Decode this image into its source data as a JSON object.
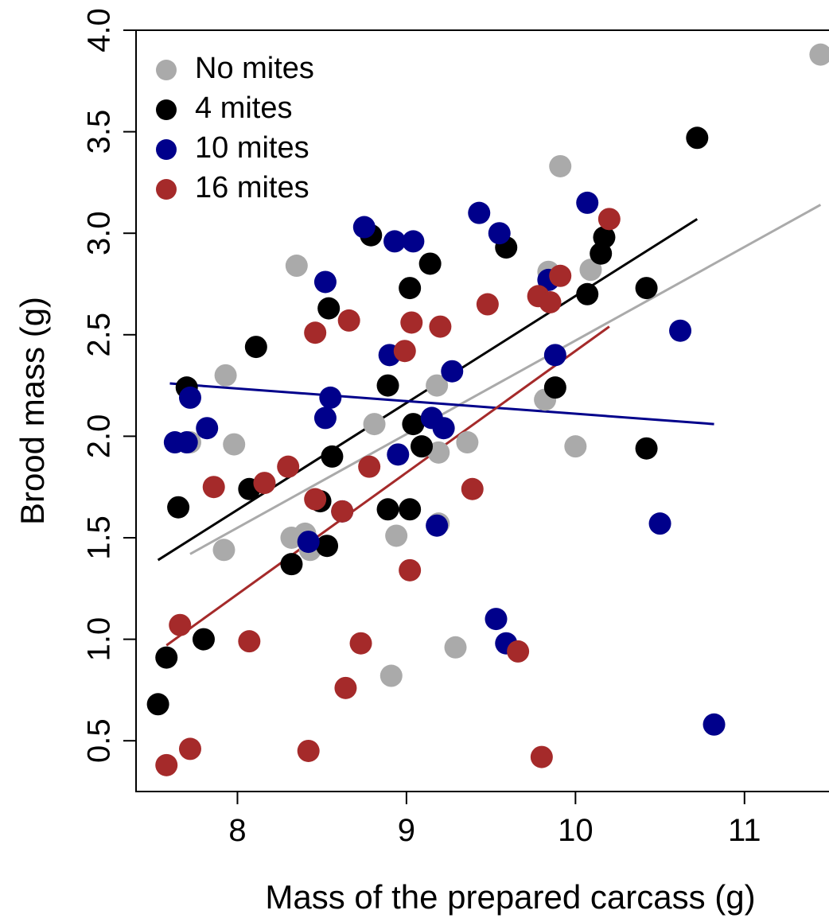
{
  "chart_data": {
    "type": "scatter",
    "title": "",
    "xlabel": "Mass of the prepared carcass (g)",
    "ylabel": "Brood mass (g)",
    "xlim": [
      7.4,
      11.5
    ],
    "ylim": [
      0.25,
      4.0
    ],
    "xticks": [
      8,
      9,
      10,
      11
    ],
    "xtick_labels": [
      "8",
      "9",
      "10",
      "11"
    ],
    "yticks": [
      0.5,
      1.0,
      1.5,
      2.0,
      2.5,
      3.0,
      3.5,
      4.0
    ],
    "ytick_labels": [
      "0.5",
      "1.0",
      "1.5",
      "2.0",
      "2.5",
      "3.0",
      "3.5",
      "4.0"
    ],
    "grid": false,
    "legend_position": "top-left",
    "series": [
      {
        "name": "No mites",
        "color": "#aaaaaa",
        "points": [
          [
            8.35,
            2.84
          ],
          [
            7.93,
            2.3
          ],
          [
            7.72,
            1.97
          ],
          [
            7.98,
            1.96
          ],
          [
            7.92,
            1.44
          ],
          [
            8.32,
            1.5
          ],
          [
            8.4,
            1.52
          ],
          [
            8.43,
            1.44
          ],
          [
            8.81,
            2.06
          ],
          [
            8.94,
            1.51
          ],
          [
            8.91,
            0.82
          ],
          [
            9.18,
            2.25
          ],
          [
            9.19,
            1.92
          ],
          [
            9.19,
            1.57
          ],
          [
            9.36,
            1.97
          ],
          [
            9.29,
            0.96
          ],
          [
            9.91,
            3.33
          ],
          [
            9.84,
            2.81
          ],
          [
            10.09,
            2.82
          ],
          [
            9.82,
            2.18
          ],
          [
            10.0,
            1.95
          ],
          [
            11.45,
            3.88
          ]
        ]
      },
      {
        "name": "4 mites",
        "color": "#000000",
        "points": [
          [
            7.53,
            0.68
          ],
          [
            7.58,
            0.91
          ],
          [
            7.8,
            1.0
          ],
          [
            7.65,
            1.65
          ],
          [
            7.7,
            2.24
          ],
          [
            8.07,
            1.74
          ],
          [
            8.11,
            2.44
          ],
          [
            8.32,
            1.37
          ],
          [
            8.49,
            1.68
          ],
          [
            8.53,
            1.46
          ],
          [
            8.54,
            2.63
          ],
          [
            8.56,
            1.9
          ],
          [
            8.79,
            2.99
          ],
          [
            8.89,
            2.25
          ],
          [
            8.89,
            1.64
          ],
          [
            9.02,
            1.64
          ],
          [
            9.02,
            2.73
          ],
          [
            9.04,
            2.06
          ],
          [
            9.09,
            1.95
          ],
          [
            9.14,
            2.85
          ],
          [
            9.59,
            2.93
          ],
          [
            9.88,
            2.24
          ],
          [
            10.07,
            2.7
          ],
          [
            10.15,
            2.9
          ],
          [
            10.17,
            2.98
          ],
          [
            10.42,
            2.73
          ],
          [
            10.42,
            1.94
          ],
          [
            10.72,
            3.47
          ]
        ]
      },
      {
        "name": "10 mites",
        "color": "#00008b",
        "points": [
          [
            7.63,
            1.97
          ],
          [
            7.7,
            1.97
          ],
          [
            7.72,
            2.19
          ],
          [
            7.82,
            2.04
          ],
          [
            8.42,
            1.48
          ],
          [
            8.52,
            2.09
          ],
          [
            8.52,
            2.76
          ],
          [
            8.55,
            2.19
          ],
          [
            8.62,
            1.63
          ],
          [
            8.75,
            3.03
          ],
          [
            8.9,
            2.4
          ],
          [
            8.93,
            2.96
          ],
          [
            8.95,
            1.91
          ],
          [
            9.04,
            2.96
          ],
          [
            9.15,
            2.09
          ],
          [
            9.18,
            1.56
          ],
          [
            9.22,
            2.04
          ],
          [
            9.27,
            2.32
          ],
          [
            9.43,
            3.1
          ],
          [
            9.53,
            1.1
          ],
          [
            9.55,
            3.0
          ],
          [
            9.59,
            0.98
          ],
          [
            9.84,
            2.77
          ],
          [
            9.88,
            2.4
          ],
          [
            10.07,
            3.15
          ],
          [
            10.5,
            1.57
          ],
          [
            10.62,
            2.52
          ],
          [
            10.82,
            0.58
          ]
        ]
      },
      {
        "name": "16 mites",
        "color": "#a52a2a",
        "points": [
          [
            7.58,
            0.38
          ],
          [
            7.66,
            1.07
          ],
          [
            7.72,
            0.46
          ],
          [
            7.86,
            1.75
          ],
          [
            8.07,
            0.99
          ],
          [
            8.16,
            1.77
          ],
          [
            8.3,
            1.85
          ],
          [
            8.42,
            0.45
          ],
          [
            8.46,
            2.51
          ],
          [
            8.46,
            1.69
          ],
          [
            8.62,
            1.63
          ],
          [
            8.64,
            0.76
          ],
          [
            8.66,
            2.57
          ],
          [
            8.73,
            0.98
          ],
          [
            8.78,
            1.85
          ],
          [
            8.99,
            2.42
          ],
          [
            9.02,
            1.34
          ],
          [
            9.03,
            2.56
          ],
          [
            9.2,
            2.54
          ],
          [
            9.39,
            1.74
          ],
          [
            9.48,
            2.65
          ],
          [
            9.66,
            0.94
          ],
          [
            9.78,
            2.69
          ],
          [
            9.8,
            0.42
          ],
          [
            9.85,
            2.66
          ],
          [
            9.91,
            2.79
          ],
          [
            10.2,
            3.07
          ]
        ]
      }
    ],
    "fit_lines": [
      {
        "name": "No mites",
        "color": "#aaaaaa",
        "x": [
          7.72,
          11.45
        ],
        "y": [
          1.42,
          3.14
        ]
      },
      {
        "name": "4 mites",
        "color": "#000000",
        "x": [
          7.53,
          10.72
        ],
        "y": [
          1.39,
          3.07
        ]
      },
      {
        "name": "10 mites",
        "color": "#00008b",
        "x": [
          7.6,
          10.82
        ],
        "y": [
          2.26,
          2.06
        ]
      },
      {
        "name": "16 mites",
        "color": "#a52a2a",
        "x": [
          7.58,
          10.2
        ],
        "y": [
          0.97,
          2.54
        ]
      }
    ]
  }
}
